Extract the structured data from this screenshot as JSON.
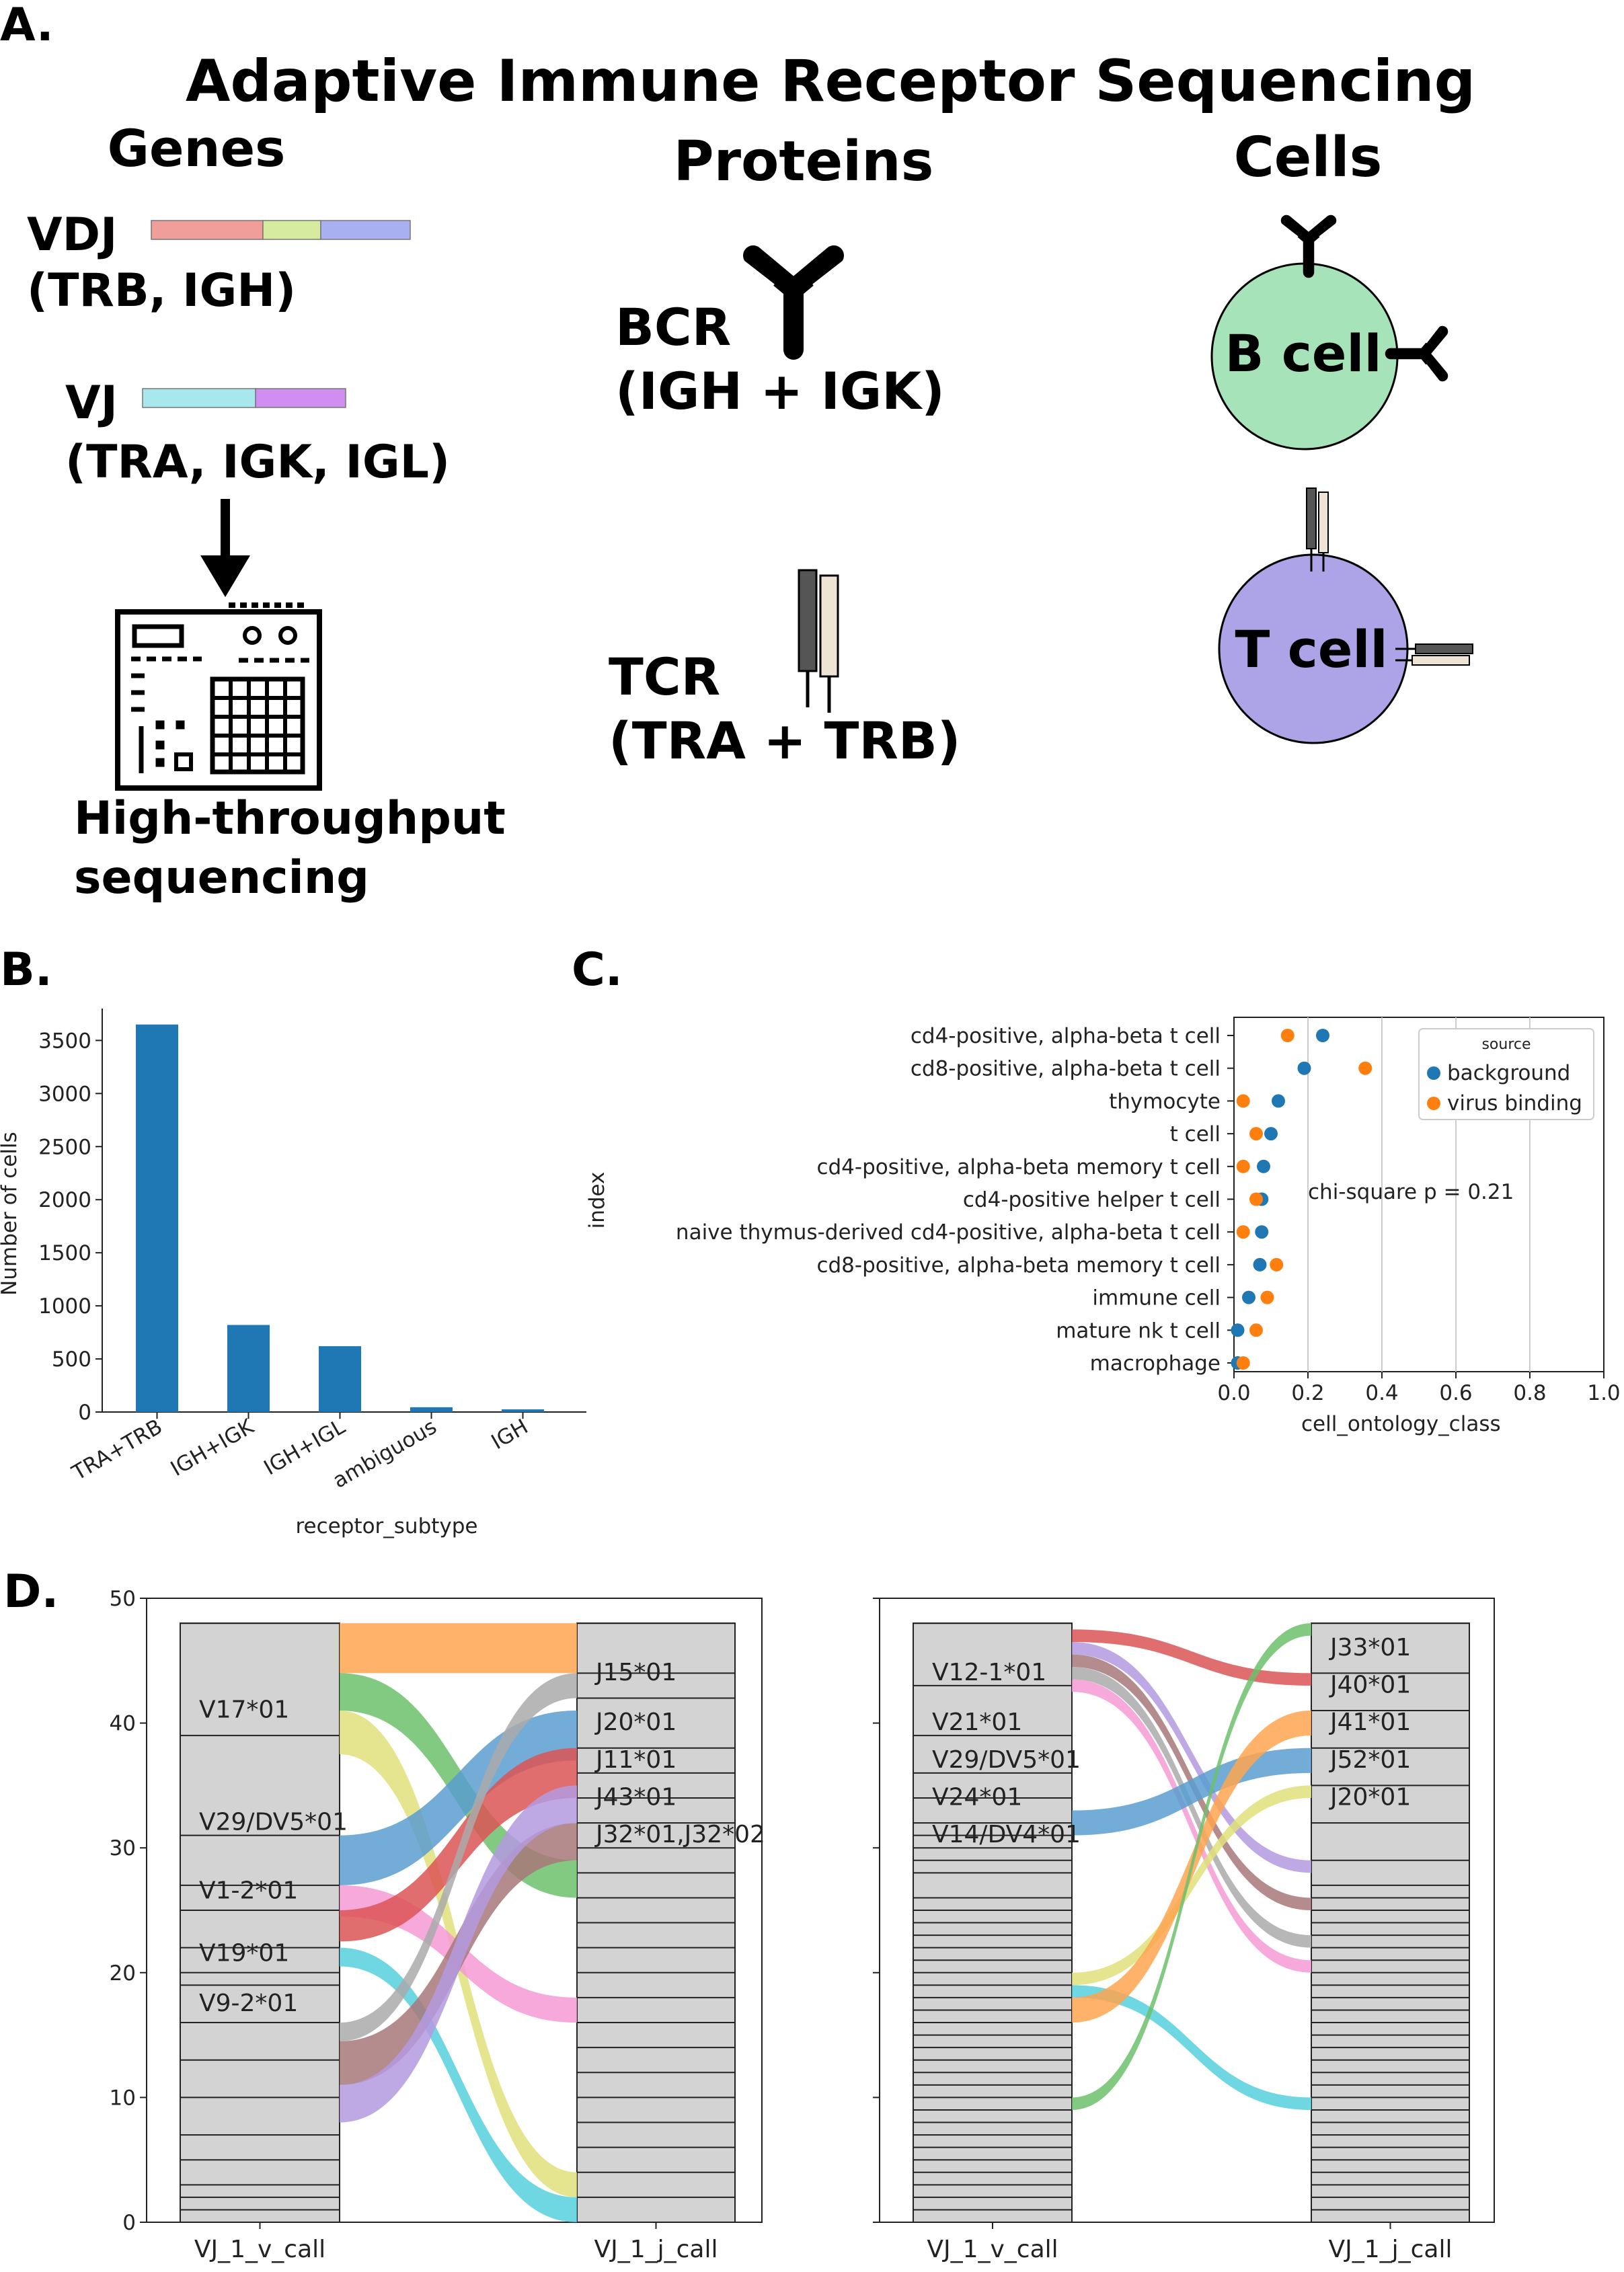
{
  "panel_a": {
    "letter": "A.",
    "title": "Adaptive Immune Receptor Sequencing",
    "genes_header": "Genes",
    "proteins_header": "Proteins",
    "cells_header": "Cells",
    "vdj_label": "VDJ",
    "vdj_sub": "(TRB, IGH)",
    "vj_label": "VJ",
    "vj_sub": "(TRA, IGK, IGL)",
    "seq_label_1": "High-throughput",
    "seq_label_2": "sequencing",
    "bcr_label": "BCR",
    "bcr_sub": "(IGH + IGK)",
    "tcr_label": "TCR",
    "tcr_sub": "(TRA + TRB)",
    "bcell_label": "B cell",
    "tcell_label": "T cell",
    "colors": {
      "v_segment": "#f09e9a",
      "d_segment": "#d6eba0",
      "j_segment": "#a9b0f2",
      "vj_v": "#a8e7ec",
      "vj_j": "#d08ef0",
      "bcell": "#a6e3b8",
      "tcell": "#aca4e6",
      "tcr_dark": "#555555",
      "tcr_light": "#ede4d6"
    },
    "icons": [
      "antibody-icon",
      "sequencer-icon",
      "arrow-down-icon",
      "tcr-icon"
    ]
  },
  "panel_b": {
    "letter": "B."
  },
  "panel_c": {
    "letter": "C."
  },
  "panel_d": {
    "letter": "D."
  },
  "chart_data": [
    {
      "id": "B",
      "type": "bar",
      "categories": [
        "TRA+TRB",
        "IGH+IGK",
        "IGH+IGL",
        "ambiguous",
        "IGH"
      ],
      "values": [
        3650,
        820,
        620,
        45,
        25
      ],
      "xlabel": "receptor_subtype",
      "ylabel": "Number of cells",
      "ylim": [
        0,
        3800
      ],
      "yticks": [
        0,
        500,
        1000,
        1500,
        2000,
        2500,
        3000,
        3500
      ],
      "color": "#1f77b4",
      "grid": false
    },
    {
      "id": "C",
      "type": "scatter",
      "categories": [
        "cd4-positive, alpha-beta t cell",
        "cd8-positive, alpha-beta t cell",
        "thymocyte",
        "t cell",
        "cd4-positive, alpha-beta memory t cell",
        "cd4-positive helper t cell",
        "naive thymus-derived cd4-positive, alpha-beta t cell",
        "cd8-positive, alpha-beta memory t cell",
        "immune cell",
        "mature nk t cell",
        "macrophage"
      ],
      "series": [
        {
          "name": "background",
          "color": "#1f77b4",
          "values": [
            0.24,
            0.19,
            0.12,
            0.1,
            0.08,
            0.075,
            0.075,
            0.07,
            0.04,
            0.01,
            0.01
          ]
        },
        {
          "name": "virus binding",
          "color": "#ff7f0e",
          "values": [
            0.145,
            0.355,
            0.025,
            0.06,
            0.025,
            0.06,
            0.025,
            0.115,
            0.09,
            0.06,
            0.025
          ]
        }
      ],
      "xlabel": "cell_ontology_class",
      "ylabel": "index",
      "xlim": [
        0.0,
        1.0
      ],
      "xticks": [
        "0.0",
        "0.2",
        "0.4",
        "0.6",
        "0.8",
        "1.0"
      ],
      "legend_title": "source",
      "legend_position": "top-right",
      "annotation": "chi-square p = 0.21",
      "grid": "x"
    },
    {
      "id": "D-left",
      "type": "sankey",
      "ylim": [
        0,
        50
      ],
      "yticks": [
        0,
        10,
        20,
        30,
        40,
        50
      ],
      "xlabels": [
        "VJ_1_v_call",
        "VJ_1_j_call"
      ],
      "v_boxes": [
        1,
        2,
        3,
        5,
        7,
        10,
        13,
        16,
        19,
        20,
        22,
        25,
        27,
        31,
        39,
        48
      ],
      "j_boxes": [
        2,
        4,
        6,
        8,
        10,
        12,
        14,
        16,
        18,
        20,
        22,
        24,
        26,
        28,
        30,
        32,
        34,
        36,
        38,
        42,
        44,
        48
      ],
      "v_labels": [
        {
          "text": "V17*01",
          "y": 40
        },
        {
          "text": "V29/DV5*01",
          "y": 31
        },
        {
          "text": "V1-2*01",
          "y": 25.5
        },
        {
          "text": "V19*01",
          "y": 20.5
        },
        {
          "text": "V9-2*01",
          "y": 16.5
        }
      ],
      "j_labels": [
        {
          "text": "J15*01",
          "y": 43
        },
        {
          "text": "J20*01",
          "y": 39
        },
        {
          "text": "J11*01",
          "y": 36
        },
        {
          "text": "J43*01",
          "y": 33
        },
        {
          "text": "J32*01,J32*02",
          "y": 30
        }
      ],
      "flows": [
        {
          "color": "#ffa54f",
          "left": [
            44,
            48
          ],
          "right": [
            44,
            48
          ]
        },
        {
          "color": "#6cc06c",
          "left": [
            41,
            44
          ],
          "right": [
            26,
            29
          ]
        },
        {
          "color": "#dfe07a",
          "left": [
            37.5,
            41
          ],
          "right": [
            2,
            4
          ]
        },
        {
          "color": "#5a9ed0",
          "left": [
            27,
            31
          ],
          "right": [
            37,
            41
          ]
        },
        {
          "color": "#f59ad4",
          "left": [
            24.5,
            27
          ],
          "right": [
            16,
            18
          ]
        },
        {
          "color": "#dc5555",
          "left": [
            22.5,
            25
          ],
          "right": [
            34,
            38
          ]
        },
        {
          "color": "#55d0dc",
          "left": [
            20.5,
            22
          ],
          "right": [
            0,
            2
          ]
        },
        {
          "color": "#aaaaaa",
          "left": [
            14.5,
            16
          ],
          "right": [
            42,
            44
          ]
        },
        {
          "color": "#a8787a",
          "left": [
            11,
            14.5
          ],
          "right": [
            29,
            32
          ]
        },
        {
          "color": "#b49ae0",
          "left": [
            8,
            11
          ],
          "right": [
            32,
            35
          ]
        }
      ]
    },
    {
      "id": "D-right",
      "type": "sankey",
      "ylim": [
        0,
        50
      ],
      "yticks": [
        0,
        10,
        20,
        30,
        40,
        50
      ],
      "xlabels": [
        "VJ_1_v_call",
        "VJ_1_j_call"
      ],
      "v_boxes": [
        1,
        2,
        3,
        4,
        5,
        6,
        7,
        8,
        9,
        10,
        11,
        12,
        13,
        14,
        15,
        16,
        17,
        18,
        19,
        20,
        21,
        22,
        23,
        24,
        25,
        26,
        28,
        29,
        30,
        31,
        32,
        34,
        36,
        39,
        43,
        48
      ],
      "j_boxes": [
        1,
        2,
        3,
        4,
        5,
        6,
        7,
        8,
        9,
        10,
        11,
        12,
        13,
        14,
        15,
        16,
        17,
        18,
        19,
        20,
        21,
        22,
        23,
        24,
        25,
        26,
        27,
        29,
        32,
        35,
        38,
        41,
        44,
        48
      ],
      "v_labels": [
        {
          "text": "V12-1*01",
          "y": 43
        },
        {
          "text": "V21*01",
          "y": 39
        },
        {
          "text": "V29/DV5*01",
          "y": 36
        },
        {
          "text": "V24*01",
          "y": 33
        },
        {
          "text": "V14/DV4*01",
          "y": 30
        }
      ],
      "j_labels": [
        {
          "text": "J33*01",
          "y": 45
        },
        {
          "text": "J40*01",
          "y": 42
        },
        {
          "text": "J41*01",
          "y": 39
        },
        {
          "text": "J52*01",
          "y": 36
        },
        {
          "text": "J20*01",
          "y": 33
        }
      ],
      "flows": [
        {
          "color": "#dc5555",
          "left": [
            46.5,
            47.5
          ],
          "right": [
            43,
            44
          ]
        },
        {
          "color": "#b49ae0",
          "left": [
            45.5,
            46.5
          ],
          "right": [
            28,
            29
          ]
        },
        {
          "color": "#a8787a",
          "left": [
            44.5,
            45.5
          ],
          "right": [
            25,
            26
          ]
        },
        {
          "color": "#aaaaaa",
          "left": [
            43.5,
            44.5
          ],
          "right": [
            22,
            23
          ]
        },
        {
          "color": "#f59ad4",
          "left": [
            42.5,
            43.5
          ],
          "right": [
            20,
            21
          ]
        },
        {
          "color": "#5a9ed0",
          "left": [
            31,
            33
          ],
          "right": [
            36,
            38
          ]
        },
        {
          "color": "#dfe07a",
          "left": [
            19,
            20
          ],
          "right": [
            34,
            35
          ]
        },
        {
          "color": "#55d0dc",
          "left": [
            18,
            19
          ],
          "right": [
            9,
            10
          ]
        },
        {
          "color": "#ffa54f",
          "left": [
            16,
            18
          ],
          "right": [
            39,
            41
          ]
        },
        {
          "color": "#6cc06c",
          "left": [
            9,
            10
          ],
          "right": [
            47,
            48
          ]
        }
      ]
    }
  ]
}
